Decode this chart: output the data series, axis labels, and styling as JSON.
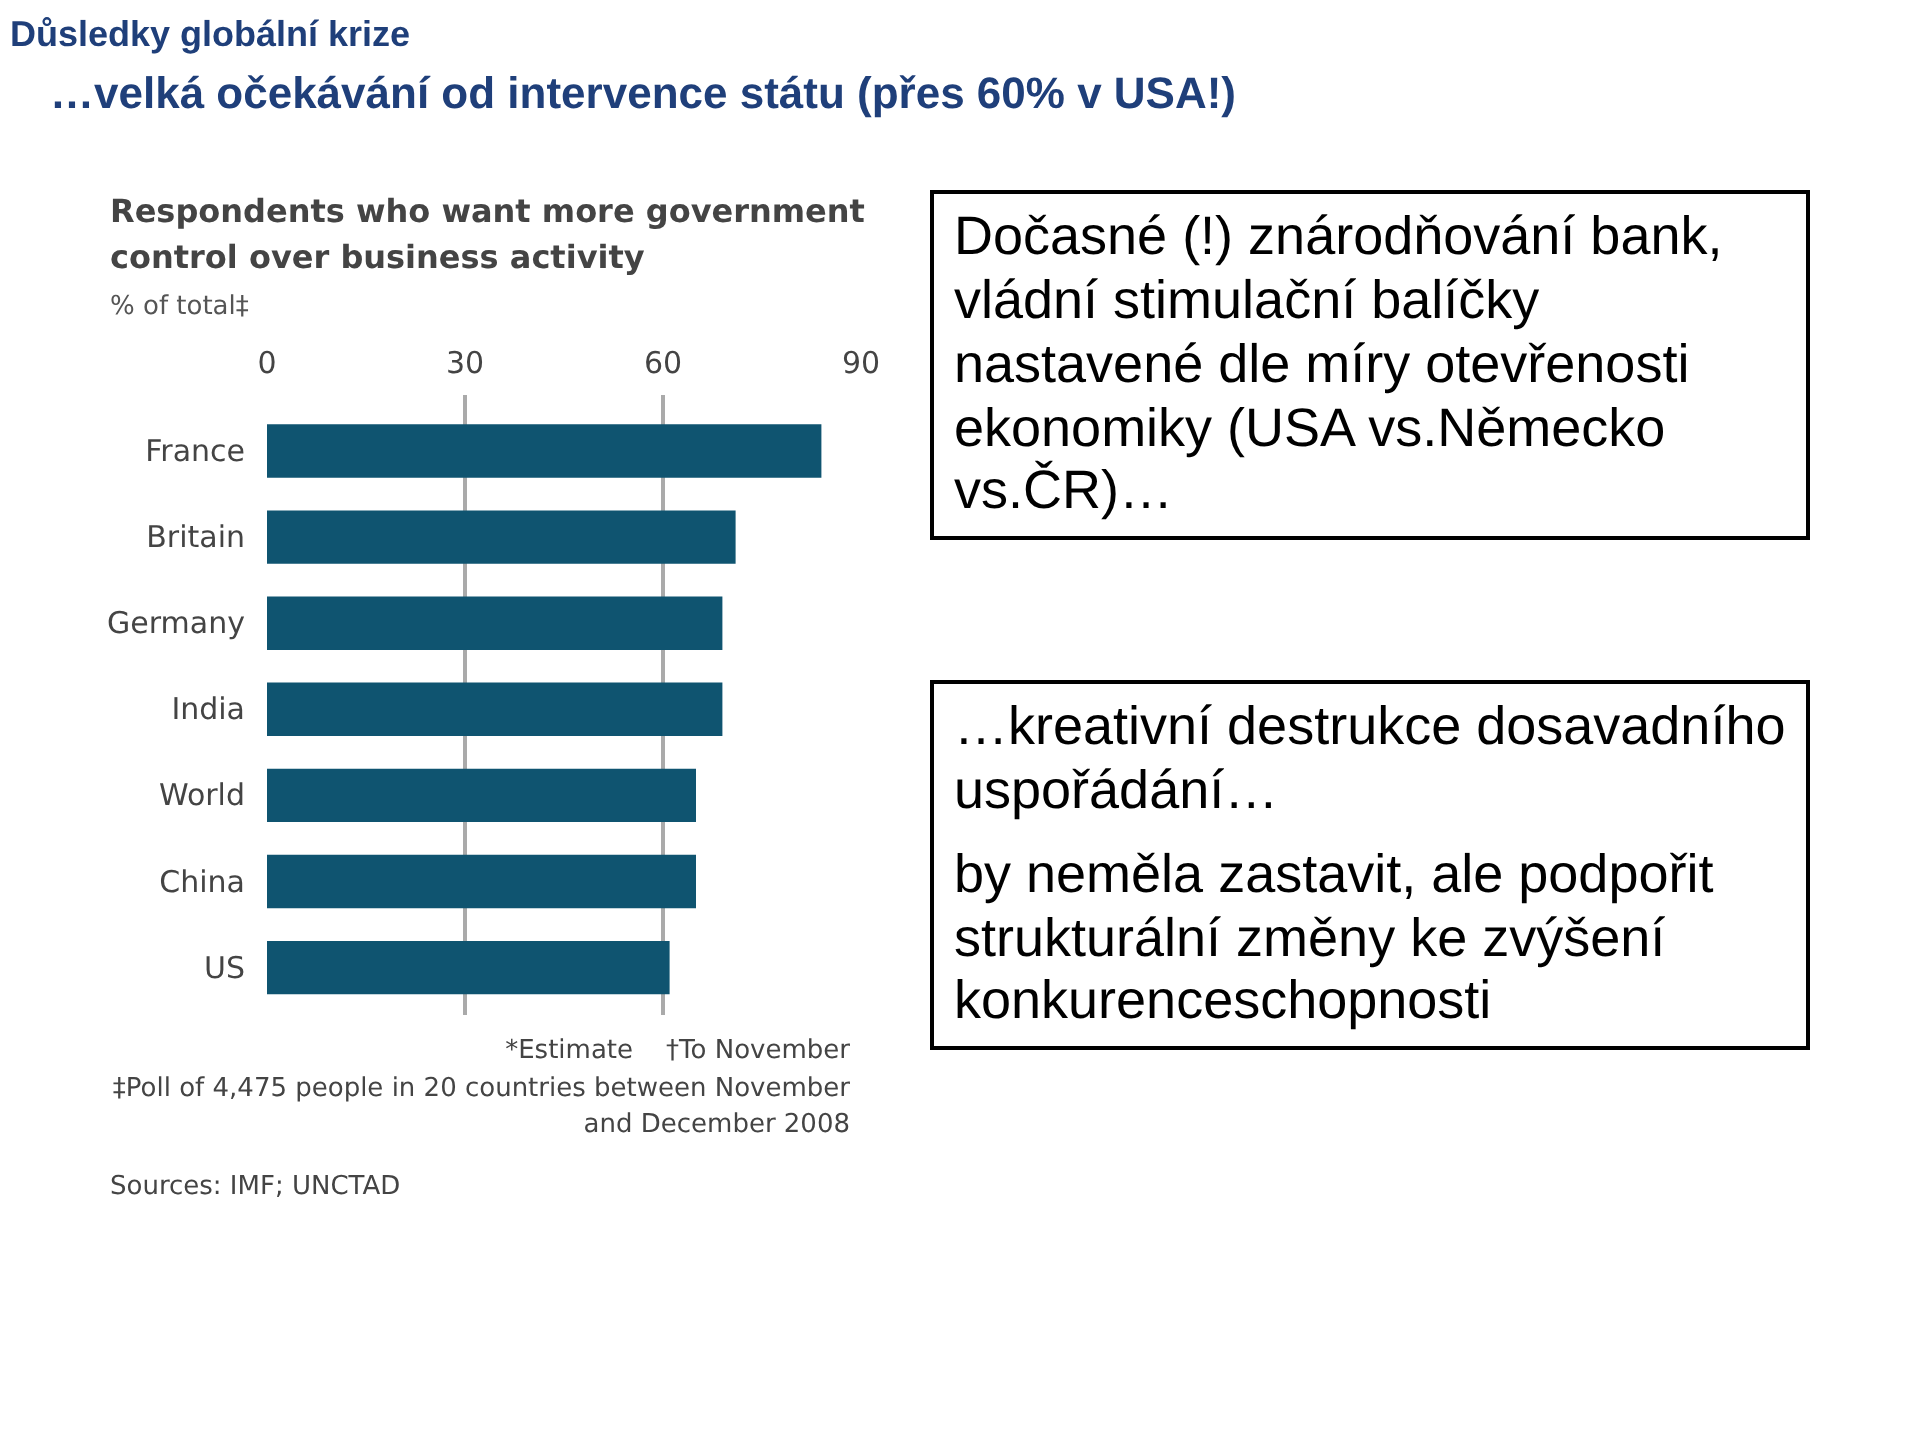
{
  "chart_data": {
    "type": "bar",
    "orientation": "horizontal",
    "title": "Respondents who want more government control over business activity",
    "subtitle": "% of total‡",
    "categories": [
      "France",
      "Britain",
      "Germany",
      "India",
      "World",
      "China",
      "US"
    ],
    "values": [
      84,
      71,
      69,
      69,
      65,
      65,
      61
    ],
    "color": "#0f5470",
    "xlim": [
      0,
      90
    ],
    "xticks": [
      0,
      30,
      60,
      90
    ],
    "grid": "x",
    "annotations": [
      "Důsledky globální krize",
      "…velká očekávání od intervence státu (přes 60% v USA!)",
      "Dočasné (!) znárodňování bank, vládní stimulační balíčky nastavené dle míry otevřenosti ekonomiky (USA vs.Německo vs.ČR)…",
      "…kreativní destrukce dosavadního uspořádání…",
      "by neměla zastavit, ale podpořit strukturální změny ke zvýšení konkurenceschopnosti",
      "*Estimate",
      "†To November",
      "‡Poll of 4,475 people in 20 countries between November and December 2008",
      "Sources: IMF; UNCTAD"
    ]
  }
}
